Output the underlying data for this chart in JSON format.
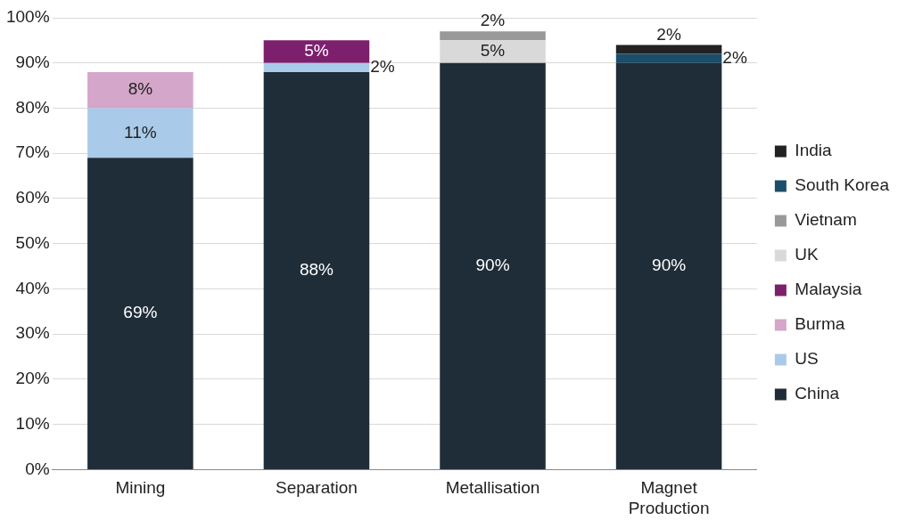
{
  "chart_data": {
    "type": "bar",
    "stacked": true,
    "categories": [
      "Mining",
      "Separation",
      "Metallisation",
      "Magnet Production"
    ],
    "ylim": [
      0,
      100
    ],
    "yticks": [
      {
        "value": 0,
        "label": "0%"
      },
      {
        "value": 10,
        "label": "10%"
      },
      {
        "value": 20,
        "label": "20%"
      },
      {
        "value": 30,
        "label": "30%"
      },
      {
        "value": 40,
        "label": "40%"
      },
      {
        "value": 50,
        "label": "50%"
      },
      {
        "value": 60,
        "label": "60%"
      },
      {
        "value": 70,
        "label": "70%"
      },
      {
        "value": 80,
        "label": "80%"
      },
      {
        "value": 90,
        "label": "90%"
      },
      {
        "value": 100,
        "label": "100%"
      }
    ],
    "grid": "y",
    "legend": "right",
    "series": [
      {
        "name": "China",
        "color": "#1f2d38",
        "values": [
          69,
          88,
          90,
          90
        ],
        "value_labels": [
          "69%",
          "88%",
          "90%",
          "90%"
        ]
      },
      {
        "name": "US",
        "color": "#a9cbe9",
        "values": [
          11,
          2,
          null,
          null
        ],
        "value_labels": [
          "11%",
          "2%",
          null,
          null
        ]
      },
      {
        "name": "Burma",
        "color": "#d4a6c9",
        "values": [
          8,
          null,
          null,
          null
        ],
        "value_labels": [
          "8%",
          null,
          null,
          null
        ]
      },
      {
        "name": "Malaysia",
        "color": "#7c1f6c",
        "values": [
          null,
          5,
          null,
          null
        ],
        "value_labels": [
          null,
          "5%",
          null,
          null
        ]
      },
      {
        "name": "UK",
        "color": "#d9d9d9",
        "values": [
          null,
          null,
          5,
          null
        ],
        "value_labels": [
          null,
          null,
          "5%",
          null
        ]
      },
      {
        "name": "Vietnam",
        "color": "#999999",
        "values": [
          null,
          null,
          2,
          null
        ],
        "value_labels": [
          null,
          null,
          "2%",
          null
        ]
      },
      {
        "name": "South Korea",
        "color": "#1a4e6a",
        "values": [
          null,
          null,
          null,
          2
        ],
        "value_labels": [
          null,
          null,
          null,
          "2%"
        ]
      },
      {
        "name": "India",
        "color": "#222222",
        "values": [
          null,
          null,
          null,
          2
        ],
        "value_labels": [
          null,
          null,
          null,
          "2%"
        ]
      }
    ]
  }
}
